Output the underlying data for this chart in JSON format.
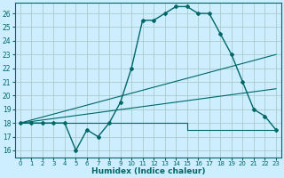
{
  "title": "",
  "xlabel": "Humidex (Indice chaleur)",
  "bg_color": "#cceeff",
  "grid_color": "#aacccc",
  "line_color": "#006666",
  "xlim": [
    -0.5,
    23.5
  ],
  "ylim": [
    15.5,
    26.8
  ],
  "yticks": [
    16,
    17,
    18,
    19,
    20,
    21,
    22,
    23,
    24,
    25,
    26
  ],
  "xticks": [
    0,
    1,
    2,
    3,
    4,
    5,
    6,
    7,
    8,
    9,
    10,
    11,
    12,
    13,
    14,
    15,
    16,
    17,
    18,
    19,
    20,
    21,
    22,
    23
  ],
  "humidex_curve": [
    18.0,
    18.0,
    18.0,
    18.0,
    18.0,
    16.0,
    17.5,
    17.0,
    18.0,
    19.5,
    22.0,
    25.5,
    25.5,
    26.0,
    26.5,
    26.5,
    26.0,
    26.0,
    24.5,
    23.0,
    21.0,
    19.0,
    18.5,
    17.5
  ],
  "line1_x": [
    0,
    23
  ],
  "line1_y": [
    18.0,
    23.0
  ],
  "line2_x": [
    0,
    23
  ],
  "line2_y": [
    18.0,
    20.5
  ],
  "line3_x": [
    0,
    15,
    15,
    23
  ],
  "line3_y": [
    18.0,
    18.0,
    17.5,
    17.5
  ]
}
